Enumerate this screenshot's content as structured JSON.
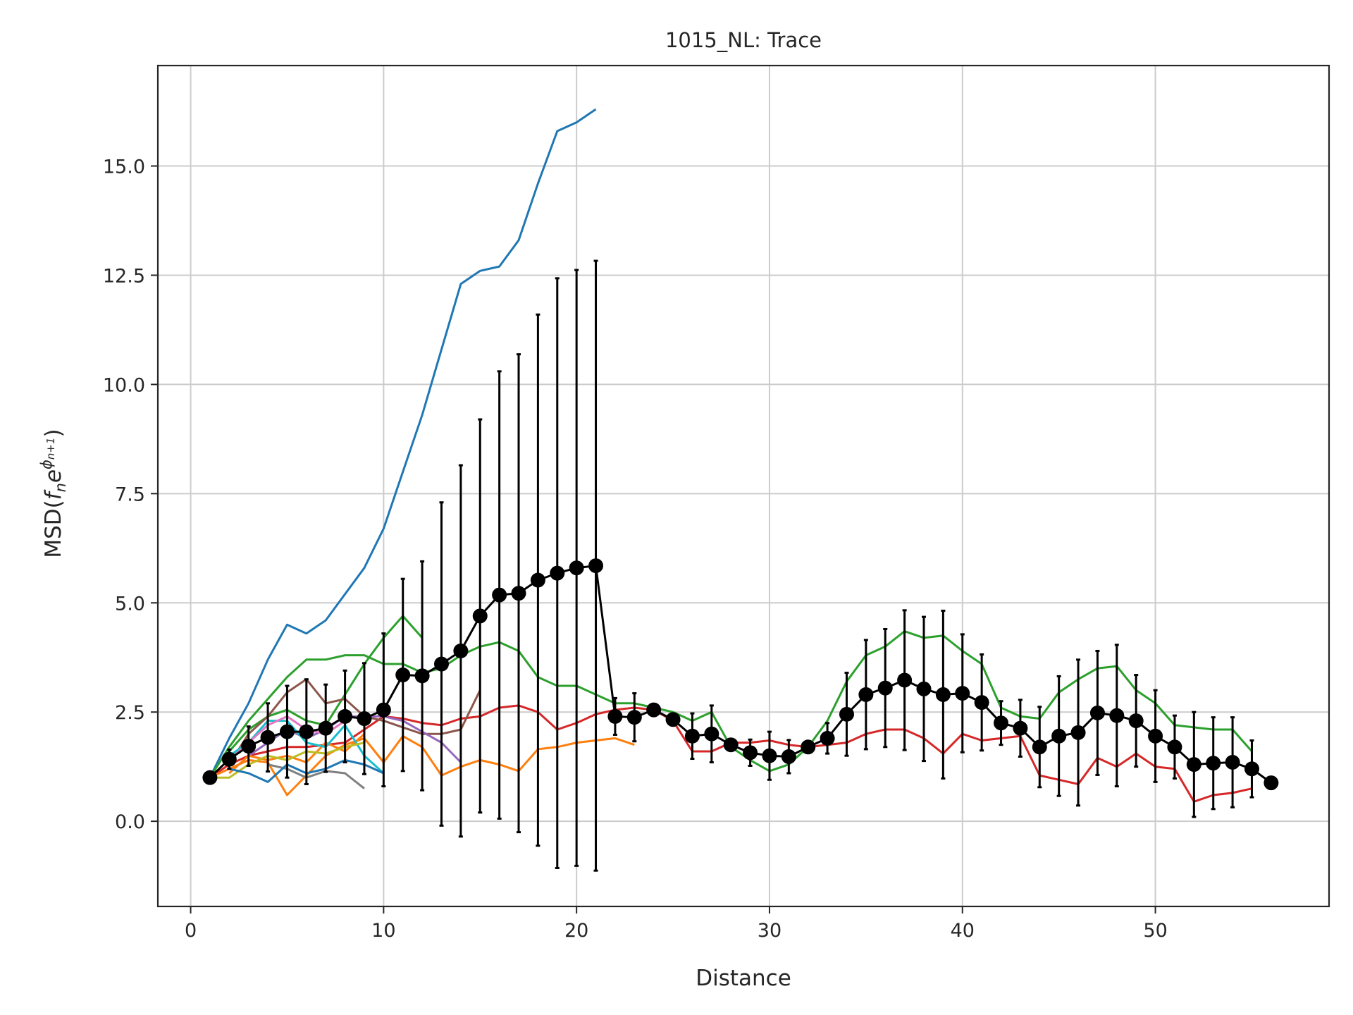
{
  "chart_data": {
    "type": "line",
    "title": "1015_NL: Trace",
    "xlabel": "Distance",
    "ylabel_parts": [
      "MSD(",
      "f",
      "n",
      "e",
      "ϕ",
      "n+1",
      ")"
    ],
    "xlim": [
      -1.7,
      59.0
    ],
    "ylim": [
      -1.95,
      17.3
    ],
    "xticks": [
      0,
      10,
      20,
      30,
      40,
      50
    ],
    "xtick_labels": [
      "0",
      "10",
      "20",
      "30",
      "40",
      "50"
    ],
    "yticks": [
      0.0,
      2.5,
      5.0,
      7.5,
      10.0,
      12.5,
      15.0
    ],
    "ytick_labels": [
      "0.0",
      "2.5",
      "5.0",
      "7.5",
      "10.0",
      "12.5",
      "15.0"
    ],
    "grid": true,
    "legend": "none",
    "series": [
      {
        "color": "#1f77b4",
        "x": [
          1,
          2,
          3,
          4,
          5,
          6,
          7,
          8,
          9,
          10,
          11,
          12,
          13,
          14,
          15,
          16,
          17,
          18,
          19,
          20,
          21
        ],
        "values": [
          1.0,
          1.9,
          2.7,
          3.7,
          4.5,
          4.3,
          4.6,
          5.2,
          5.8,
          6.7,
          8.0,
          9.3,
          10.8,
          12.3,
          12.6,
          12.7,
          13.3,
          14.6,
          15.8,
          16.0,
          16.3
        ]
      },
      {
        "color": "#2ca02c",
        "x": [
          1,
          2,
          3,
          4,
          5,
          6,
          7,
          8,
          9,
          10,
          11,
          12,
          13,
          14,
          15,
          16,
          17,
          18,
          19,
          20,
          21,
          22,
          23,
          24,
          25,
          26,
          27,
          28,
          29,
          30,
          31,
          32,
          33,
          34,
          35,
          36,
          37,
          38,
          39,
          40,
          41,
          42,
          43,
          44,
          45,
          46,
          47,
          48,
          49,
          50,
          51,
          52,
          53,
          54,
          55
        ],
        "values": [
          1.0,
          1.7,
          2.3,
          2.8,
          3.3,
          3.7,
          3.7,
          3.8,
          3.8,
          3.6,
          3.6,
          3.4,
          3.5,
          3.8,
          4.0,
          4.1,
          3.9,
          3.3,
          3.1,
          3.1,
          2.9,
          2.7,
          2.7,
          2.6,
          2.5,
          2.3,
          2.5,
          1.7,
          1.4,
          1.15,
          1.3,
          1.7,
          2.3,
          3.2,
          3.8,
          4.0,
          4.35,
          4.2,
          4.25,
          3.9,
          3.6,
          2.6,
          2.4,
          2.35,
          2.95,
          3.25,
          3.5,
          3.55,
          3.0,
          2.7,
          2.2,
          2.15,
          2.1,
          2.1,
          1.6
        ]
      },
      {
        "color": "#2ca02c",
        "x": [
          2,
          3,
          4,
          5,
          6,
          7,
          8,
          9,
          10,
          11,
          12
        ],
        "values": [
          1.6,
          2.1,
          2.4,
          2.55,
          2.3,
          2.2,
          2.9,
          3.6,
          4.2,
          4.7,
          4.2
        ]
      },
      {
        "color": "#d62728",
        "x": [
          1,
          2,
          3,
          4,
          5,
          6,
          7,
          8,
          9,
          10,
          11,
          12,
          13,
          14,
          15,
          16,
          17,
          18,
          19,
          20,
          21,
          22,
          23,
          24,
          25,
          26,
          27,
          28,
          29,
          30,
          31,
          32,
          33,
          34,
          35,
          36,
          37,
          38,
          39,
          40,
          41,
          42,
          43,
          44,
          45,
          46,
          47,
          48,
          49,
          50,
          51,
          52,
          53,
          54,
          55
        ],
        "values": [
          1.0,
          1.3,
          1.5,
          1.6,
          1.7,
          1.7,
          1.75,
          1.8,
          2.1,
          2.4,
          2.35,
          2.25,
          2.2,
          2.35,
          2.4,
          2.6,
          2.65,
          2.5,
          2.1,
          2.25,
          2.45,
          2.55,
          2.6,
          2.55,
          2.3,
          1.6,
          1.6,
          1.8,
          1.8,
          1.85,
          1.75,
          1.7,
          1.75,
          1.8,
          2.0,
          2.1,
          2.1,
          1.9,
          1.55,
          2.0,
          1.85,
          1.9,
          1.95,
          1.05,
          0.95,
          0.85,
          1.45,
          1.25,
          1.55,
          1.25,
          1.2,
          0.45,
          0.6,
          0.65,
          0.75
        ]
      },
      {
        "color": "#8c564b",
        "x": [
          2,
          3,
          4,
          5,
          6,
          7,
          8,
          9,
          10,
          11,
          12,
          13,
          14,
          15
        ],
        "values": [
          1.3,
          2.0,
          2.4,
          2.95,
          3.25,
          2.7,
          2.8,
          2.4,
          2.3,
          2.15,
          2.0,
          2.0,
          2.1,
          3.0
        ]
      },
      {
        "color": "#9467bd",
        "x": [
          3,
          4,
          5,
          6,
          7,
          8,
          9,
          10,
          11,
          12,
          13,
          14
        ],
        "values": [
          1.5,
          1.8,
          2.1,
          1.9,
          2.1,
          2.4,
          2.4,
          2.4,
          2.3,
          2.05,
          1.8,
          1.35
        ]
      },
      {
        "color": "#ff7f0e",
        "x": [
          1,
          2,
          3,
          4,
          5,
          6,
          7,
          8,
          9,
          10,
          11,
          12,
          13,
          14,
          15,
          16,
          17,
          18,
          19,
          20,
          21,
          22,
          23
        ],
        "values": [
          1.0,
          1.2,
          1.4,
          1.35,
          0.6,
          1.05,
          1.5,
          1.75,
          1.9,
          1.35,
          1.95,
          1.7,
          1.05,
          1.25,
          1.4,
          1.3,
          1.15,
          1.65,
          1.7,
          1.8,
          1.85,
          1.9,
          1.75
        ]
      },
      {
        "color": "#ff7f0e",
        "x": [
          2,
          3,
          4,
          5,
          6,
          7,
          8,
          9
        ],
        "values": [
          1.1,
          1.5,
          1.4,
          1.5,
          1.35,
          1.8,
          1.6,
          2.0
        ]
      },
      {
        "color": "#17becf",
        "x": [
          2,
          3,
          4,
          5,
          6,
          7,
          8,
          9,
          10
        ],
        "values": [
          1.5,
          1.8,
          2.3,
          2.3,
          1.8,
          1.7,
          2.2,
          1.5,
          1.1
        ]
      },
      {
        "color": "#e377c2",
        "x": [
          2,
          3,
          4,
          5,
          6,
          7,
          8
        ],
        "values": [
          1.4,
          1.8,
          2.2,
          2.4,
          2.1,
          2.0,
          2.3
        ]
      },
      {
        "color": "#bcbd22",
        "x": [
          1,
          2,
          3,
          4,
          5,
          6,
          7,
          8,
          9
        ],
        "values": [
          1.0,
          1.0,
          1.3,
          1.5,
          1.4,
          1.6,
          1.55,
          1.7,
          1.8
        ]
      },
      {
        "color": "#7f7f7f",
        "x": [
          4,
          5,
          6,
          7,
          8,
          9
        ],
        "values": [
          1.3,
          1.2,
          1.0,
          1.15,
          1.1,
          0.75
        ]
      },
      {
        "color": "#1f77b4",
        "x": [
          2,
          3,
          4,
          5,
          6,
          7,
          8,
          9,
          10
        ],
        "values": [
          1.2,
          1.1,
          0.9,
          1.3,
          1.1,
          1.2,
          1.4,
          1.3,
          1.1
        ]
      }
    ],
    "mean_series": {
      "color": "#000000",
      "x": [
        1,
        2,
        3,
        4,
        5,
        6,
        7,
        8,
        9,
        10,
        11,
        12,
        13,
        14,
        15,
        16,
        17,
        18,
        19,
        20,
        21,
        22,
        23,
        24,
        25,
        26,
        27,
        28,
        29,
        30,
        31,
        32,
        33,
        34,
        35,
        36,
        37,
        38,
        39,
        40,
        41,
        42,
        43,
        44,
        45,
        46,
        47,
        48,
        49,
        50,
        51,
        52,
        53,
        54,
        55,
        56
      ],
      "values": [
        1.0,
        1.42,
        1.72,
        1.92,
        2.05,
        2.05,
        2.13,
        2.4,
        2.35,
        2.55,
        3.35,
        3.33,
        3.6,
        3.9,
        4.7,
        5.18,
        5.22,
        5.52,
        5.68,
        5.8,
        5.85,
        2.4,
        2.38,
        2.55,
        2.33,
        1.95,
        2.0,
        1.75,
        1.57,
        1.5,
        1.48,
        1.7,
        1.9,
        2.45,
        2.9,
        3.05,
        3.23,
        3.03,
        2.9,
        2.93,
        2.72,
        2.25,
        2.13,
        1.7,
        1.95,
        2.03,
        2.48,
        2.42,
        2.3,
        1.95,
        1.7,
        1.3,
        1.33,
        1.35,
        1.2,
        0.88
      ],
      "err": [
        0.0,
        0.22,
        0.45,
        0.78,
        1.05,
        1.2,
        1.0,
        1.05,
        1.27,
        1.75,
        2.2,
        2.62,
        3.7,
        4.25,
        4.5,
        5.12,
        5.47,
        6.08,
        6.75,
        6.82,
        6.98,
        0.42,
        0.55,
        0.0,
        0.0,
        0.52,
        0.65,
        0.0,
        0.3,
        0.55,
        0.38,
        0.0,
        0.35,
        0.95,
        1.25,
        1.35,
        1.6,
        1.65,
        1.92,
        1.35,
        1.1,
        0.5,
        0.65,
        0.92,
        1.37,
        1.67,
        1.42,
        1.62,
        1.05,
        1.05,
        0.72,
        1.2,
        1.05,
        1.03,
        0.65,
        0.0
      ]
    }
  }
}
